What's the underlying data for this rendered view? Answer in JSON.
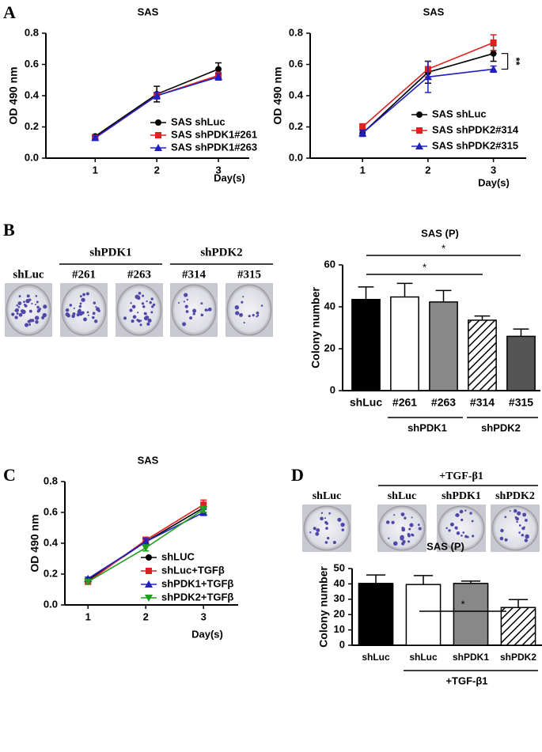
{
  "panel_labels": [
    "A",
    "B",
    "C",
    "D"
  ],
  "plates_b": {
    "labels": [
      "shLuc",
      "#261",
      "#263",
      "#314",
      "#315"
    ],
    "groups": [
      "shPDK1",
      "shPDK2"
    ]
  },
  "plates_d": {
    "labels": [
      "shLuc",
      "shLuc",
      "shPDK1",
      "shPDK2"
    ],
    "group": "+TGF-β1"
  },
  "chart_data": [
    {
      "type": "line",
      "title": "SAS",
      "y_label": "OD 490 nm",
      "x_label": "Day(s)",
      "x": [
        1,
        2,
        3
      ],
      "xlim": [
        0.2,
        3.5
      ],
      "xticks": [
        1,
        2,
        3
      ],
      "ylim": [
        0,
        0.8
      ],
      "yticks": [
        {
          "value": 0,
          "label": "0.0"
        },
        0.2,
        0.4,
        0.6,
        0.8
      ],
      "series": [
        {
          "name": "SAS shLuc",
          "color": "#000000",
          "marker": "circle",
          "values": [
            0.14,
            0.41,
            0.57
          ],
          "errors": [
            0.01,
            0.05,
            0.04
          ]
        },
        {
          "name": "SAS shPDK1#261",
          "color": "#e02020",
          "marker": "square",
          "values": [
            0.13,
            0.4,
            0.53
          ],
          "errors": [
            0.01,
            0.02,
            0.02
          ]
        },
        {
          "name": "SAS shPDK1#263",
          "color": "#2020c0",
          "marker": "triangle",
          "values": [
            0.13,
            0.4,
            0.52
          ],
          "errors": [
            0.01,
            0.02,
            0.02
          ]
        }
      ]
    },
    {
      "type": "line",
      "title": "SAS",
      "y_label": "OD 490 nm",
      "x_label": "Day(s)",
      "x": [
        1,
        2,
        3
      ],
      "xlim": [
        0.2,
        3.5
      ],
      "xticks": [
        1,
        2,
        3
      ],
      "ylim": [
        0,
        0.8
      ],
      "yticks": [
        {
          "value": 0,
          "label": "0.0"
        },
        0.2,
        0.4,
        0.6,
        0.8
      ],
      "annotations": [
        "**"
      ],
      "series": [
        {
          "name": "SAS shLuc",
          "color": "#000000",
          "marker": "circle",
          "values": [
            0.16,
            0.55,
            0.67
          ],
          "errors": [
            0.02,
            0.07,
            0.05
          ]
        },
        {
          "name": "SAS shPDK2#314",
          "color": "#e02020",
          "marker": "square",
          "values": [
            0.2,
            0.57,
            0.74
          ],
          "errors": [
            0.02,
            0.05,
            0.05
          ]
        },
        {
          "name": "SAS shPDK2#315",
          "color": "#2020c0",
          "marker": "triangle",
          "values": [
            0.16,
            0.52,
            0.57
          ],
          "errors": [
            0.02,
            0.1,
            0.02
          ]
        }
      ]
    },
    {
      "type": "bar",
      "title": "SAS (P)",
      "y_label": "Colony number",
      "categories": [
        "shLuc",
        "#261",
        "#263",
        "#314",
        "#315"
      ],
      "values": [
        43.5,
        44.7,
        42.3,
        33.6,
        25.9
      ],
      "errors": [
        6,
        6.5,
        5.5,
        2,
        3.5
      ],
      "colors": [
        "#000000",
        "#ffffff",
        "#888888",
        "#ffffff",
        "#555555"
      ],
      "hatch": [
        false,
        false,
        false,
        true,
        false
      ],
      "ylim": [
        0,
        60
      ],
      "yticks": [
        0,
        20,
        40,
        60
      ],
      "group_labels": [
        "shPDK1",
        "shPDK2"
      ],
      "annotations": [
        "*",
        "*"
      ]
    },
    {
      "type": "line",
      "title": "SAS",
      "y_label": "OD 490 nm",
      "x_label": "Day(s)",
      "x": [
        1,
        2,
        3
      ],
      "xlim": [
        0.6,
        3.6
      ],
      "xticks": [
        1,
        2,
        3
      ],
      "ylim": [
        0,
        0.8
      ],
      "yticks": [
        {
          "value": 0,
          "label": "0.0"
        },
        0.2,
        0.4,
        0.6,
        0.8
      ],
      "series": [
        {
          "name": "shLUC",
          "color": "#000000",
          "marker": "circle",
          "values": [
            0.16,
            0.41,
            0.63
          ],
          "errors": [
            0.01,
            0.02,
            0.03
          ]
        },
        {
          "name": "shLuc+TGFβ",
          "color": "#e02020",
          "marker": "square",
          "values": [
            0.15,
            0.42,
            0.65
          ],
          "errors": [
            0.01,
            0.02,
            0.03
          ]
        },
        {
          "name": "shPDK1+TGFβ",
          "color": "#2020c0",
          "marker": "triangle",
          "values": [
            0.17,
            0.41,
            0.6
          ],
          "errors": [
            0.01,
            0.02,
            0.02
          ]
        },
        {
          "name": "shPDK2+TGFβ",
          "color": "#20a020",
          "marker": "tridown",
          "values": [
            0.15,
            0.37,
            0.62
          ],
          "errors": [
            0.01,
            0.02,
            0.02
          ]
        }
      ]
    },
    {
      "type": "bar",
      "title": "SAS (P)",
      "y_label": "Colony number",
      "categories": [
        "shLuc",
        "shLuc",
        "shPDK1",
        "shPDK2"
      ],
      "values": [
        40.3,
        39.6,
        40.3,
        24.6
      ],
      "errors": [
        5.5,
        5.8,
        1.5,
        5.2
      ],
      "colors": [
        "#000000",
        "#ffffff",
        "#888888",
        "#ffffff"
      ],
      "hatch": [
        false,
        false,
        false,
        true
      ],
      "ylim": [
        0,
        50
      ],
      "yticks": [
        0,
        10,
        20,
        30,
        40,
        50
      ],
      "group_labels": [
        "+TGF-β1"
      ],
      "annotations": [
        "*"
      ]
    }
  ]
}
